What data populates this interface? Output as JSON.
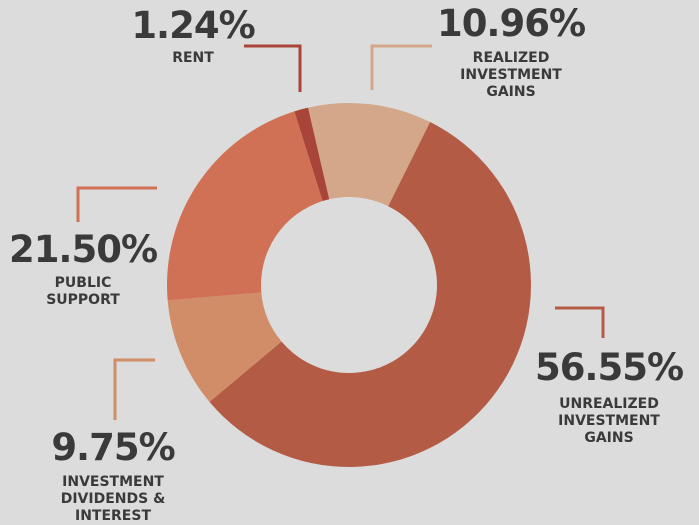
{
  "chart_data": {
    "type": "donut",
    "categories": [
      "REALIZED INVESTMENT GAINS",
      "UNREALIZED INVESTMENT GAINS",
      "INVESTMENT DIVIDENDS & INTEREST",
      "PUBLIC SUPPORT",
      "RENT"
    ],
    "values": [
      10.96,
      56.55,
      9.75,
      21.5,
      1.24
    ],
    "value_labels": [
      "10.96%",
      "56.55%",
      "9.75%",
      "21.50%",
      "1.24%"
    ],
    "colors": [
      "#d4a78a",
      "#b35b45",
      "#d18d68",
      "#d07155",
      "#a94538"
    ]
  }
}
